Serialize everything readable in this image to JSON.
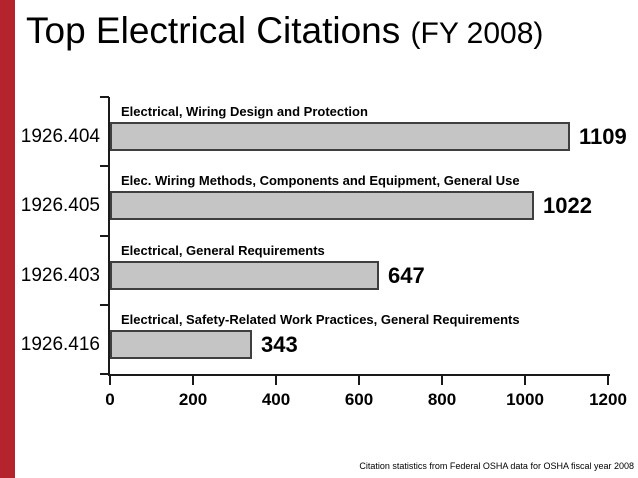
{
  "slide": {
    "title": {
      "main": "Top Electrical Citations",
      "suffix": "(FY 2008)"
    },
    "footer": {
      "source_note": "Citation statistics from Federal OSHA data for OSHA fiscal year 2008"
    },
    "accent_color": "#b5242c"
  },
  "chart_data": {
    "type": "bar",
    "orientation": "horizontal",
    "title": "Top Electrical Citations (FY 2008)",
    "categories": [
      "1926.404",
      "1926.405",
      "1926.403",
      "1926.416"
    ],
    "series_labels": [
      "Electrical, Wiring Design and Protection",
      "Elec. Wiring Methods, Components and Equipment, General Use",
      "Electrical, General Requirements",
      "Electrical, Safety-Related Work Practices, General Requirements"
    ],
    "values": [
      1109,
      1022,
      647,
      343
    ],
    "value_labels": [
      "1109",
      "1022",
      "647",
      "343"
    ],
    "xlim": [
      0,
      1200
    ],
    "x_ticks": [
      0,
      200,
      400,
      600,
      800,
      1000,
      1200
    ],
    "grid": false,
    "legend": false,
    "bar_fill": "#c5c5c5",
    "bar_border": "#3f3f3f"
  }
}
